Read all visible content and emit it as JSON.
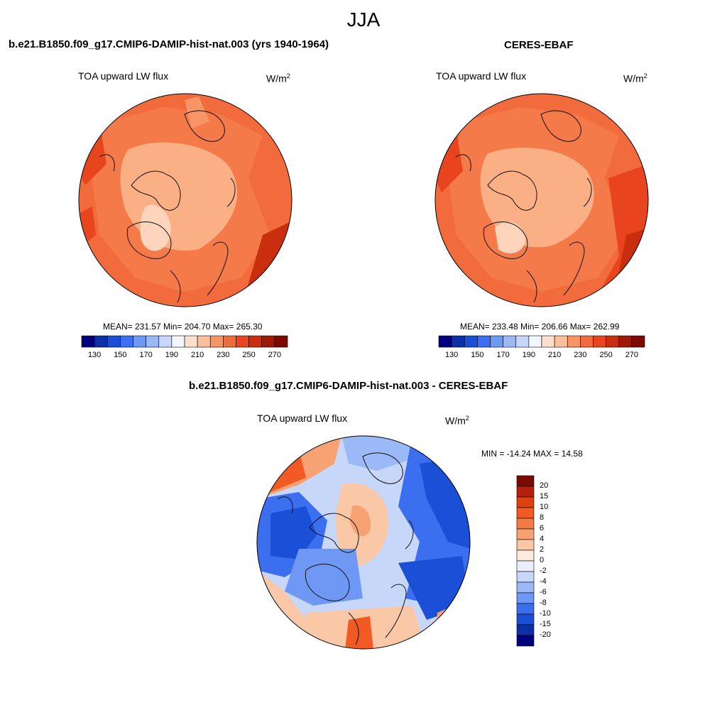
{
  "figure": {
    "season": "JJA"
  },
  "panels": [
    {
      "title": "b.e21.B1850.f09_g17.CMIP6-DAMIP-hist-nat.003 (yrs 1940-1964)",
      "variable": "TOA upward LW flux",
      "units_base": "W/m",
      "units_exp": "2",
      "stats": "MEAN= 231.57  Min= 204.70  Max= 265.30"
    },
    {
      "title": "CERES-EBAF",
      "variable": "TOA upward LW flux",
      "units_base": "W/m",
      "units_exp": "2",
      "stats": "MEAN= 233.48  Min= 206.66  Max= 262.99"
    },
    {
      "title": "b.e21.B1850.f09_g17.CMIP6-DAMIP-hist-nat.003 - CERES-EBAF",
      "variable": "TOA upward LW flux",
      "units_base": "W/m",
      "units_exp": "2",
      "stats": "MIN = -14.24 MAX =  14.58"
    }
  ],
  "colorbar_abs": {
    "colors": [
      "#00007f",
      "#0d2fa8",
      "#1a4fd6",
      "#3b6ff0",
      "#6f98f5",
      "#9bb8f7",
      "#c7d7fa",
      "#f2f6ff",
      "#fde0cb",
      "#fbbf9a",
      "#f79566",
      "#f26b3c",
      "#e8441e",
      "#c92e0e",
      "#9e1a06",
      "#7a0a02"
    ],
    "ticks": [
      "130",
      "150",
      "170",
      "190",
      "210",
      "230",
      "250",
      "270"
    ]
  },
  "colorbar_diff": {
    "colors": [
      "#7a0a02",
      "#b3200b",
      "#e0400f",
      "#f25a24",
      "#f47a45",
      "#f7a272",
      "#fac8a6",
      "#fdeadc",
      "#eaf0fb",
      "#c7d7fa",
      "#9bb8f7",
      "#6f98f5",
      "#3b6ff0",
      "#1a4fd6",
      "#0d2fa8",
      "#00007f"
    ],
    "labels": [
      "20",
      "15",
      "10",
      "8",
      "6",
      "4",
      "2",
      "0",
      "-2",
      "-4",
      "-6",
      "-8",
      "-10",
      "-15",
      "-20"
    ]
  }
}
